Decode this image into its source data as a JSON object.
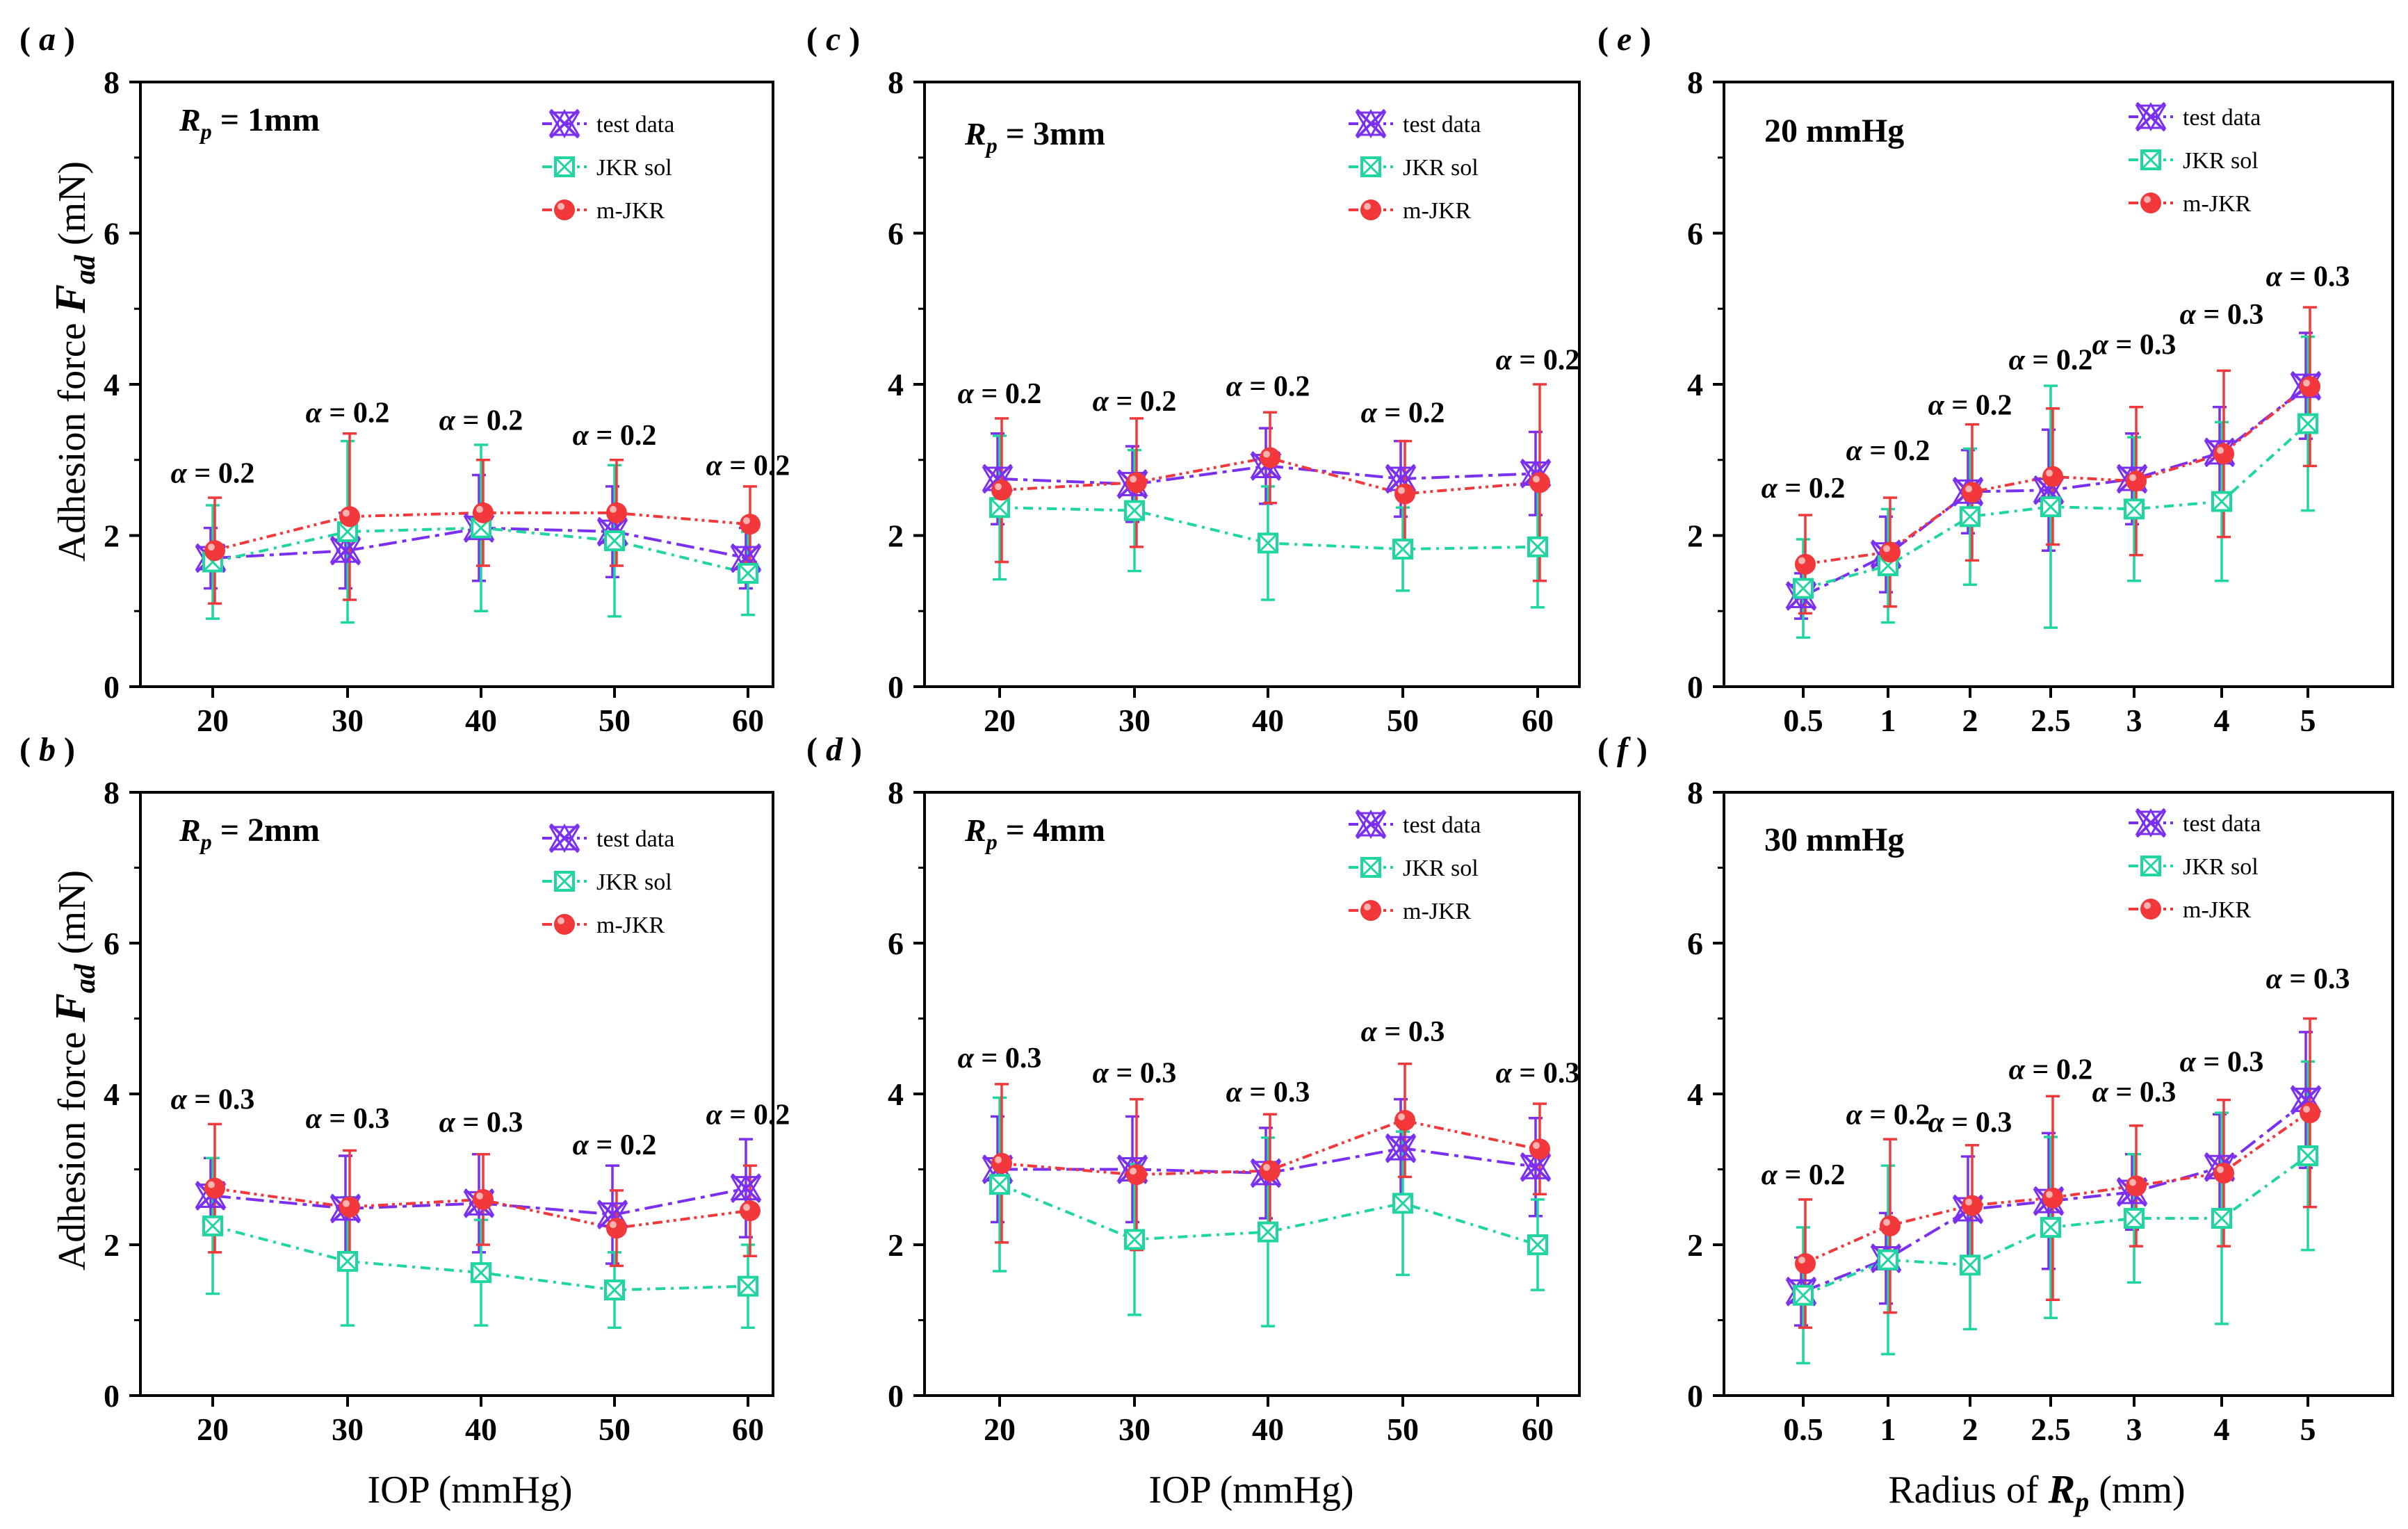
{
  "colors": {
    "test": "#7b2ff0",
    "jkr": "#1fd6a0",
    "mjkr": "#f2383b"
  },
  "legend": [
    "test data",
    "JKR sol",
    "m-JKR"
  ],
  "axis_titles": {
    "y_left": "Adhesion force",
    "y_sym": "F",
    "y_sub": "ad",
    "y_unit": "(mN)",
    "x_iop": "IOP (mmHg)",
    "x_rp_pre": "Radius of",
    "x_rp_sym": "R",
    "x_rp_sub": "p",
    "x_rp_unit": "(mm)"
  },
  "chart_data": [
    {
      "panel": "a",
      "panel_label": "a",
      "type": "line",
      "cond_sym": "R",
      "cond_sub": "p",
      "cond_value": "= 1mm",
      "cond_text": "",
      "categories": [
        "20",
        "30",
        "40",
        "50",
        "60"
      ],
      "ylim": [
        0,
        8
      ],
      "yticks": [
        "0",
        "2",
        "4",
        "6",
        "8"
      ],
      "xlabel": "",
      "ylabel": "Adhesion force F_ad (mN)",
      "alpha_labels": [
        "α = 0.2",
        "α = 0.2",
        "α = 0.2",
        "α = 0.2",
        "α = 0.2"
      ],
      "alpha_y": [
        2.7,
        3.5,
        3.4,
        3.2,
        2.8
      ],
      "series": [
        {
          "name": "test data",
          "values": [
            1.7,
            1.8,
            2.1,
            2.05,
            1.7
          ],
          "err": [
            0.4,
            0.5,
            0.7,
            0.6,
            0.4
          ]
        },
        {
          "name": "JKR sol",
          "values": [
            1.65,
            2.05,
            2.1,
            1.93,
            1.5
          ],
          "err": [
            0.75,
            1.2,
            1.1,
            1.0,
            0.55
          ]
        },
        {
          "name": "m-JKR",
          "values": [
            1.8,
            2.25,
            2.3,
            2.3,
            2.15
          ],
          "err": [
            0.7,
            1.1,
            0.7,
            0.7,
            0.5
          ]
        }
      ]
    },
    {
      "panel": "b",
      "panel_label": "b",
      "type": "line",
      "cond_sym": "R",
      "cond_sub": "p",
      "cond_value": "= 2mm",
      "cond_text": "",
      "categories": [
        "20",
        "30",
        "40",
        "50",
        "60"
      ],
      "ylim": [
        0,
        8
      ],
      "yticks": [
        "0",
        "2",
        "4",
        "6",
        "8"
      ],
      "xlabel": "IOP (mmHg)",
      "ylabel": "Adhesion force F_ad (mN)",
      "alpha_labels": [
        "α = 0.3",
        "α = 0.3",
        "α = 0.3",
        "α = 0.2",
        "α = 0.2"
      ],
      "alpha_y": [
        3.8,
        3.55,
        3.5,
        3.2,
        3.6
      ],
      "series": [
        {
          "name": "test data",
          "values": [
            2.65,
            2.48,
            2.55,
            2.4,
            2.75
          ],
          "err": [
            0.5,
            0.7,
            0.65,
            0.65,
            0.65
          ]
        },
        {
          "name": "JKR sol",
          "values": [
            2.25,
            1.78,
            1.63,
            1.4,
            1.45
          ],
          "err": [
            0.9,
            0.85,
            0.7,
            0.5,
            0.55
          ]
        },
        {
          "name": "m-JKR",
          "values": [
            2.75,
            2.5,
            2.6,
            2.22,
            2.45
          ],
          "err": [
            0.85,
            0.75,
            0.6,
            0.5,
            0.6
          ]
        }
      ]
    },
    {
      "panel": "c",
      "panel_label": "c",
      "type": "line",
      "cond_sym": "R",
      "cond_sub": "p",
      "cond_value": "= 3mm",
      "cond_text": "",
      "categories": [
        "20",
        "30",
        "40",
        "50",
        "60"
      ],
      "ylim": [
        0,
        8
      ],
      "yticks": [
        "0",
        "2",
        "4",
        "6",
        "8"
      ],
      "xlabel": "",
      "ylabel": "",
      "alpha_labels": [
        "α = 0.2",
        "α = 0.2",
        "α = 0.2",
        "α = 0.2",
        "α = 0.2"
      ],
      "alpha_y": [
        3.75,
        3.65,
        3.85,
        3.5,
        4.2
      ],
      "series": [
        {
          "name": "test data",
          "values": [
            2.75,
            2.68,
            2.92,
            2.75,
            2.82
          ],
          "err": [
            0.6,
            0.5,
            0.5,
            0.5,
            0.55
          ]
        },
        {
          "name": "JKR sol",
          "values": [
            2.37,
            2.33,
            1.9,
            1.82,
            1.85
          ],
          "err": [
            0.95,
            0.8,
            0.75,
            0.55,
            0.8
          ]
        },
        {
          "name": "m-JKR",
          "values": [
            2.6,
            2.7,
            3.03,
            2.55,
            2.7
          ],
          "err": [
            0.95,
            0.85,
            0.6,
            0.7,
            1.3
          ]
        }
      ]
    },
    {
      "panel": "d",
      "panel_label": "d",
      "type": "line",
      "cond_sym": "R",
      "cond_sub": "p",
      "cond_value": "= 4mm",
      "cond_text": "",
      "categories": [
        "20",
        "30",
        "40",
        "50",
        "60"
      ],
      "ylim": [
        0,
        8
      ],
      "yticks": [
        "0",
        "2",
        "4",
        "6",
        "8"
      ],
      "xlabel": "IOP (mmHg)",
      "ylabel": "",
      "alpha_labels": [
        "α = 0.3",
        "α = 0.3",
        "α = 0.3",
        "α = 0.3",
        "α = 0.3"
      ],
      "alpha_y": [
        4.35,
        4.15,
        3.9,
        4.7,
        4.15
      ],
      "series": [
        {
          "name": "test data",
          "values": [
            3.0,
            3.0,
            2.95,
            3.28,
            3.03
          ],
          "err": [
            0.7,
            0.7,
            0.6,
            0.65,
            0.65
          ]
        },
        {
          "name": "JKR sol",
          "values": [
            2.8,
            2.07,
            2.17,
            2.55,
            2.0
          ],
          "err": [
            1.15,
            1.0,
            1.25,
            0.95,
            0.6
          ]
        },
        {
          "name": "m-JKR",
          "values": [
            3.08,
            2.93,
            2.98,
            3.65,
            3.27
          ],
          "err": [
            1.05,
            1.0,
            0.75,
            0.75,
            0.6
          ]
        }
      ]
    },
    {
      "panel": "e",
      "panel_label": "e",
      "type": "line",
      "cond_sym": "",
      "cond_sub": "",
      "cond_value": "",
      "cond_text": "20 mmHg",
      "categories": [
        "0.5",
        "1",
        "2",
        "2.5",
        "3",
        "4",
        "5"
      ],
      "ylim": [
        0,
        8
      ],
      "yticks": [
        "0",
        "2",
        "4",
        "6",
        "8"
      ],
      "xlabel": "",
      "ylabel": "",
      "alpha_labels": [
        "α = 0.2",
        "α = 0.2",
        "α = 0.2",
        "α = 0.2",
        "α = 0.3",
        "α = 0.3",
        "α = 0.3"
      ],
      "alpha_y": [
        2.5,
        3.0,
        3.6,
        4.2,
        4.4,
        4.8,
        5.3
      ],
      "series": [
        {
          "name": "test data",
          "values": [
            1.2,
            1.75,
            2.58,
            2.6,
            2.75,
            3.1,
            3.98
          ],
          "err": [
            0.3,
            0.5,
            0.55,
            0.8,
            0.6,
            0.6,
            0.7
          ]
        },
        {
          "name": "JKR sol",
          "values": [
            1.3,
            1.6,
            2.25,
            2.38,
            2.35,
            2.45,
            3.48
          ],
          "err": [
            0.65,
            0.75,
            0.9,
            1.6,
            0.95,
            1.05,
            1.15
          ]
        },
        {
          "name": "m-JKR",
          "values": [
            1.62,
            1.78,
            2.57,
            2.78,
            2.72,
            3.08,
            3.97
          ],
          "err": [
            0.65,
            0.72,
            0.9,
            0.9,
            0.98,
            1.1,
            1.05
          ]
        }
      ]
    },
    {
      "panel": "f",
      "panel_label": "f",
      "type": "line",
      "cond_sym": "",
      "cond_sub": "",
      "cond_value": "",
      "cond_text": "30 mmHg",
      "categories": [
        "0.5",
        "1",
        "2",
        "2.5",
        "3",
        "4",
        "5"
      ],
      "ylim": [
        0,
        8
      ],
      "yticks": [
        "0",
        "2",
        "4",
        "6",
        "8"
      ],
      "xlabel": "Radius of R_p (mm)",
      "ylabel": "",
      "alpha_labels": [
        "α = 0.2",
        "α = 0.2",
        "α = 0.3",
        "α = 0.2",
        "α = 0.3",
        "α = 0.3",
        "α = 0.3"
      ],
      "alpha_y": [
        2.8,
        3.6,
        3.5,
        4.2,
        3.9,
        4.3,
        5.4
      ],
      "series": [
        {
          "name": "test data",
          "values": [
            1.38,
            1.82,
            2.47,
            2.58,
            2.7,
            3.03,
            3.92
          ],
          "err": [
            0.45,
            0.6,
            0.7,
            0.9,
            0.5,
            0.7,
            0.9
          ]
        },
        {
          "name": "JKR sol",
          "values": [
            1.33,
            1.8,
            1.73,
            2.23,
            2.35,
            2.35,
            3.18
          ],
          "err": [
            0.9,
            1.25,
            0.85,
            1.2,
            0.85,
            1.4,
            1.25
          ]
        },
        {
          "name": "m-JKR",
          "values": [
            1.75,
            2.25,
            2.52,
            2.62,
            2.78,
            2.95,
            3.75
          ],
          "err": [
            0.85,
            1.15,
            0.8,
            1.35,
            0.8,
            0.97,
            1.25
          ]
        }
      ]
    }
  ]
}
